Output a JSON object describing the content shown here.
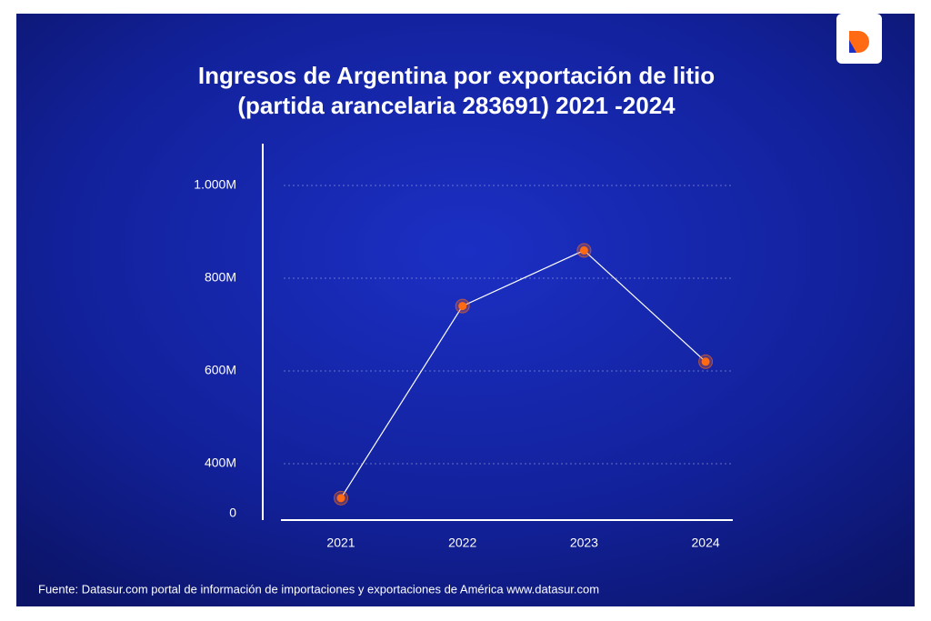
{
  "chart_data": {
    "type": "line",
    "title": [
      "Ingresos de Argentina por exportación de litio",
      "(partida arancelaria 283691) 2021 -2024"
    ],
    "source": "Fuente: Datasur.com portal de información de importaciones y exportaciones de América www.datasur.com",
    "categories": [
      "2021",
      "2022",
      "2023",
      "2024"
    ],
    "series": [
      {
        "color": "#ff6a13",
        "values": [
          125,
          740,
          860,
          620
        ]
      }
    ],
    "ylim": [
      0,
      1100
    ],
    "yticks": [
      0,
      {
        "value": 400,
        "label": "400M"
      },
      {
        "value": 600,
        "label": "600M"
      },
      {
        "value": 800,
        "label": "800M"
      },
      {
        "value": 1000,
        "label": "1.000M"
      }
    ],
    "grid": true
  }
}
